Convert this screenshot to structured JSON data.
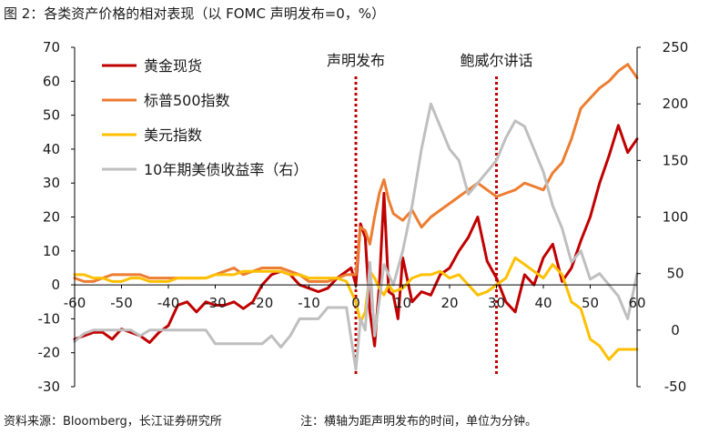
{
  "figure": {
    "title": "图 2：各类资产价格的相对表现（以 FOMC 声明发布=0，%）",
    "source": "资料来源：Bloomberg，长江证券研究所",
    "note": "注：横轴为距声明发布的时间，单位为分钟。"
  },
  "chart_data": {
    "type": "line",
    "title": "",
    "xlabel": "",
    "ylabel": "",
    "xlim": [
      -60,
      60
    ],
    "ylim": [
      -30,
      70
    ],
    "y2lim": [
      -50,
      250
    ],
    "grid": false,
    "legend_position": "top-left",
    "x_ticks": [
      -60,
      -50,
      -40,
      -30,
      -20,
      -10,
      0,
      10,
      20,
      30,
      40,
      50,
      60
    ],
    "y_ticks": [
      -30,
      -20,
      -10,
      0,
      10,
      20,
      30,
      40,
      50,
      60,
      70
    ],
    "y2_ticks": [
      -50,
      0,
      50,
      100,
      150,
      200,
      250
    ],
    "annotations": [
      {
        "id": "statement",
        "label": "声明发布",
        "x": 0,
        "color": "#c00000"
      },
      {
        "id": "speech",
        "label": "鲍威尔讲话",
        "x": 30,
        "color": "#c00000"
      }
    ],
    "series": [
      {
        "name": "黄金现货",
        "color": "#c00000",
        "axis": "left",
        "points": [
          [
            -60,
            -16
          ],
          [
            -58,
            -15
          ],
          [
            -56,
            -14
          ],
          [
            -54,
            -14
          ],
          [
            -52,
            -16
          ],
          [
            -50,
            -13
          ],
          [
            -48,
            -14
          ],
          [
            -46,
            -15
          ],
          [
            -44,
            -17
          ],
          [
            -42,
            -14
          ],
          [
            -40,
            -12
          ],
          [
            -38,
            -6
          ],
          [
            -36,
            -5
          ],
          [
            -34,
            -8
          ],
          [
            -32,
            -5
          ],
          [
            -30,
            -6
          ],
          [
            -28,
            -6
          ],
          [
            -26,
            -5
          ],
          [
            -24,
            -7
          ],
          [
            -22,
            -5
          ],
          [
            -20,
            0
          ],
          [
            -18,
            3
          ],
          [
            -16,
            4
          ],
          [
            -14,
            3
          ],
          [
            -12,
            0
          ],
          [
            -10,
            -1
          ],
          [
            -8,
            -2
          ],
          [
            -6,
            -1
          ],
          [
            -4,
            2
          ],
          [
            -2,
            4
          ],
          [
            -1,
            5
          ],
          [
            0,
            0
          ],
          [
            1,
            18
          ],
          [
            2,
            14
          ],
          [
            3,
            -8
          ],
          [
            4,
            -18
          ],
          [
            5,
            0
          ],
          [
            6,
            27
          ],
          [
            7,
            -2
          ],
          [
            8,
            -3
          ],
          [
            9,
            -10
          ],
          [
            10,
            8
          ],
          [
            12,
            -5
          ],
          [
            14,
            -2
          ],
          [
            16,
            -3
          ],
          [
            18,
            3
          ],
          [
            20,
            5
          ],
          [
            22,
            10
          ],
          [
            24,
            14
          ],
          [
            26,
            20
          ],
          [
            28,
            7
          ],
          [
            30,
            2
          ],
          [
            32,
            -5
          ],
          [
            34,
            -8
          ],
          [
            36,
            3
          ],
          [
            38,
            0
          ],
          [
            40,
            8
          ],
          [
            42,
            12
          ],
          [
            44,
            1
          ],
          [
            46,
            5
          ],
          [
            48,
            13
          ],
          [
            50,
            20
          ],
          [
            52,
            30
          ],
          [
            54,
            38
          ],
          [
            56,
            47
          ],
          [
            58,
            39
          ],
          [
            60,
            43
          ]
        ]
      },
      {
        "name": "标普500指数",
        "color": "#ed7d31",
        "axis": "left",
        "points": [
          [
            -60,
            2
          ],
          [
            -58,
            1
          ],
          [
            -56,
            1
          ],
          [
            -54,
            2
          ],
          [
            -52,
            3
          ],
          [
            -50,
            3
          ],
          [
            -48,
            3
          ],
          [
            -46,
            3
          ],
          [
            -44,
            2
          ],
          [
            -42,
            2
          ],
          [
            -40,
            2
          ],
          [
            -38,
            2
          ],
          [
            -36,
            2
          ],
          [
            -34,
            2
          ],
          [
            -32,
            2
          ],
          [
            -30,
            3
          ],
          [
            -28,
            4
          ],
          [
            -26,
            5
          ],
          [
            -24,
            3
          ],
          [
            -22,
            4
          ],
          [
            -20,
            5
          ],
          [
            -18,
            5
          ],
          [
            -16,
            5
          ],
          [
            -14,
            4
          ],
          [
            -12,
            3
          ],
          [
            -10,
            1
          ],
          [
            -8,
            1
          ],
          [
            -6,
            1
          ],
          [
            -4,
            2
          ],
          [
            -2,
            3
          ],
          [
            0,
            3
          ],
          [
            1,
            17
          ],
          [
            2,
            16
          ],
          [
            3,
            12
          ],
          [
            4,
            20
          ],
          [
            5,
            27
          ],
          [
            6,
            31
          ],
          [
            7,
            25
          ],
          [
            8,
            21
          ],
          [
            10,
            19
          ],
          [
            12,
            22
          ],
          [
            14,
            17
          ],
          [
            16,
            20
          ],
          [
            18,
            22
          ],
          [
            20,
            24
          ],
          [
            22,
            26
          ],
          [
            24,
            28
          ],
          [
            26,
            30
          ],
          [
            28,
            28
          ],
          [
            30,
            26
          ],
          [
            32,
            27
          ],
          [
            34,
            28
          ],
          [
            36,
            30
          ],
          [
            38,
            29
          ],
          [
            40,
            28
          ],
          [
            42,
            33
          ],
          [
            44,
            36
          ],
          [
            46,
            43
          ],
          [
            48,
            52
          ],
          [
            50,
            55
          ],
          [
            52,
            58
          ],
          [
            54,
            60
          ],
          [
            56,
            63
          ],
          [
            58,
            65
          ],
          [
            60,
            61
          ]
        ]
      },
      {
        "name": "美元指数",
        "color": "#ffc000",
        "axis": "left",
        "points": [
          [
            -60,
            3
          ],
          [
            -58,
            3
          ],
          [
            -56,
            2
          ],
          [
            -54,
            2
          ],
          [
            -52,
            1
          ],
          [
            -50,
            1
          ],
          [
            -48,
            2
          ],
          [
            -46,
            2
          ],
          [
            -44,
            1
          ],
          [
            -42,
            1
          ],
          [
            -40,
            1
          ],
          [
            -38,
            2
          ],
          [
            -36,
            2
          ],
          [
            -34,
            2
          ],
          [
            -32,
            2
          ],
          [
            -30,
            3
          ],
          [
            -28,
            3
          ],
          [
            -26,
            3
          ],
          [
            -24,
            4
          ],
          [
            -22,
            4
          ],
          [
            -20,
            4
          ],
          [
            -18,
            4
          ],
          [
            -16,
            4
          ],
          [
            -14,
            3
          ],
          [
            -12,
            3
          ],
          [
            -10,
            2
          ],
          [
            -8,
            2
          ],
          [
            -6,
            2
          ],
          [
            -4,
            2
          ],
          [
            -2,
            1
          ],
          [
            0,
            -5
          ],
          [
            1,
            -11
          ],
          [
            2,
            -8
          ],
          [
            3,
            4
          ],
          [
            4,
            2
          ],
          [
            5,
            -1
          ],
          [
            6,
            -3
          ],
          [
            7,
            0
          ],
          [
            8,
            -2
          ],
          [
            10,
            -1
          ],
          [
            12,
            2
          ],
          [
            14,
            3
          ],
          [
            16,
            3
          ],
          [
            18,
            4
          ],
          [
            20,
            2
          ],
          [
            22,
            3
          ],
          [
            24,
            0
          ],
          [
            26,
            -3
          ],
          [
            28,
            -2
          ],
          [
            30,
            0
          ],
          [
            32,
            2
          ],
          [
            34,
            8
          ],
          [
            36,
            6
          ],
          [
            38,
            4
          ],
          [
            40,
            2
          ],
          [
            42,
            6
          ],
          [
            44,
            3
          ],
          [
            46,
            -5
          ],
          [
            48,
            -7
          ],
          [
            50,
            -16
          ],
          [
            52,
            -18
          ],
          [
            54,
            -22
          ],
          [
            56,
            -19
          ],
          [
            58,
            -19
          ],
          [
            60,
            -19
          ]
        ]
      },
      {
        "name": "10年期美债收益率（右）",
        "color": "#bfbfbf",
        "axis": "right",
        "points": [
          [
            -60,
            -10
          ],
          [
            -58,
            -3
          ],
          [
            -56,
            0
          ],
          [
            -54,
            0
          ],
          [
            -52,
            0
          ],
          [
            -50,
            0
          ],
          [
            -48,
            0
          ],
          [
            -46,
            -5
          ],
          [
            -44,
            0
          ],
          [
            -42,
            0
          ],
          [
            -40,
            0
          ],
          [
            -38,
            0
          ],
          [
            -36,
            0
          ],
          [
            -34,
            0
          ],
          [
            -32,
            0
          ],
          [
            -30,
            -12
          ],
          [
            -28,
            -12
          ],
          [
            -26,
            -12
          ],
          [
            -24,
            -12
          ],
          [
            -22,
            -12
          ],
          [
            -20,
            -12
          ],
          [
            -18,
            -5
          ],
          [
            -16,
            -15
          ],
          [
            -14,
            -5
          ],
          [
            -12,
            10
          ],
          [
            -10,
            10
          ],
          [
            -8,
            10
          ],
          [
            -6,
            20
          ],
          [
            -4,
            20
          ],
          [
            -2,
            20
          ],
          [
            0,
            -35
          ],
          [
            1,
            10
          ],
          [
            2,
            0
          ],
          [
            3,
            60
          ],
          [
            4,
            -5
          ],
          [
            6,
            58
          ],
          [
            8,
            40
          ],
          [
            10,
            70
          ],
          [
            12,
            110
          ],
          [
            14,
            160
          ],
          [
            16,
            200
          ],
          [
            18,
            180
          ],
          [
            20,
            160
          ],
          [
            22,
            150
          ],
          [
            24,
            120
          ],
          [
            26,
            130
          ],
          [
            28,
            140
          ],
          [
            30,
            150
          ],
          [
            32,
            170
          ],
          [
            34,
            185
          ],
          [
            36,
            180
          ],
          [
            38,
            160
          ],
          [
            40,
            140
          ],
          [
            42,
            110
          ],
          [
            44,
            90
          ],
          [
            46,
            60
          ],
          [
            48,
            70
          ],
          [
            50,
            45
          ],
          [
            52,
            50
          ],
          [
            54,
            40
          ],
          [
            56,
            30
          ],
          [
            58,
            10
          ],
          [
            60,
            50
          ]
        ]
      }
    ]
  }
}
